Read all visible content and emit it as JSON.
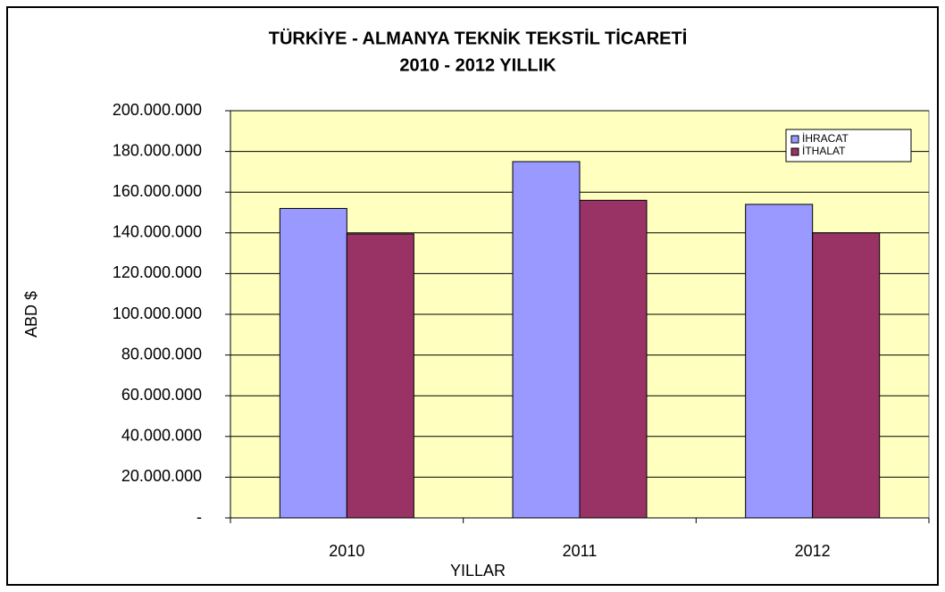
{
  "chart_data": {
    "type": "bar",
    "title": "TÜRKİYE - ALMANYA TEKNİK TEKSTİL TİCARETİ",
    "subtitle": "2010 - 2012 YILLIK",
    "y_label": "ABD $",
    "x_label": "YILLAR",
    "categories": [
      "2010",
      "2011",
      "2012"
    ],
    "series": [
      {
        "name": "İHRACAT",
        "color": "#9999ff",
        "values": [
          152000000,
          175000000,
          154000000
        ]
      },
      {
        "name": "İTHALAT",
        "color": "#993366",
        "values": [
          139500000,
          156000000,
          140000000
        ]
      }
    ],
    "ylim": [
      0,
      200000000
    ],
    "yticks": [
      {
        "value": 0,
        "label": "-"
      },
      {
        "value": 20000000,
        "label": "20.000.000"
      },
      {
        "value": 40000000,
        "label": "40.000.000"
      },
      {
        "value": 60000000,
        "label": "60.000.000"
      },
      {
        "value": 80000000,
        "label": "80.000.000"
      },
      {
        "value": 100000000,
        "label": "100.000.000"
      },
      {
        "value": 120000000,
        "label": "120.000.000"
      },
      {
        "value": 140000000,
        "label": "140.000.000"
      },
      {
        "value": 160000000,
        "label": "160.000.000"
      },
      {
        "value": 180000000,
        "label": "180.000.000"
      },
      {
        "value": 200000000,
        "label": "200.000.000"
      }
    ],
    "grid": true,
    "legend": "top-right",
    "plot_background": "#ffffc0"
  }
}
